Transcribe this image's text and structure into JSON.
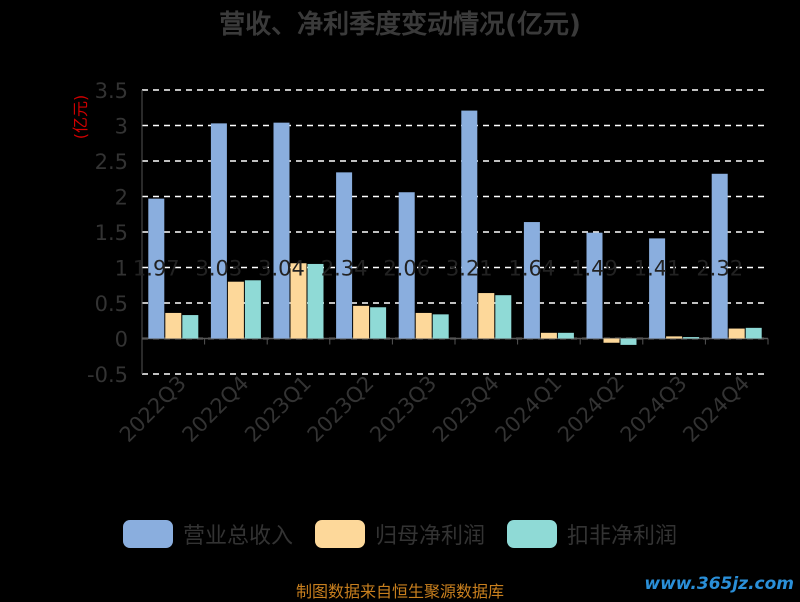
{
  "title": "营收、净利季度变动情况(亿元)",
  "source": "制图数据来自恒生聚源数据库",
  "watermark": "www.365jz.com",
  "colors": {
    "revenue": "#8aaede",
    "net_profit": "#fdd89a",
    "deducted_profit": "#8fdad6",
    "axis": "#555555",
    "tick_text": "#333333",
    "unit": "#d00000"
  },
  "chart_data": {
    "type": "bar",
    "title": "营收、净利季度变动情况(亿元)",
    "ylabel": "(亿元)",
    "xlabel": "",
    "ylim": [
      -0.5,
      3.5
    ],
    "yticks": [
      "3.5",
      "3",
      "2.5",
      "2",
      "1.5",
      "1",
      "0.5",
      "0",
      "-0.5"
    ],
    "grid": true,
    "legend_position": "bottom",
    "categories": [
      "2022Q3",
      "2022Q4",
      "2023Q1",
      "2023Q2",
      "2023Q3",
      "2023Q4",
      "2024Q1",
      "2024Q2",
      "2024Q3",
      "2024Q4"
    ],
    "series": [
      {
        "name": "营业总收入",
        "color": "#8aaede",
        "values": [
          1.97,
          3.03,
          3.04,
          2.34,
          2.06,
          3.21,
          1.64,
          1.49,
          1.41,
          2.32
        ]
      },
      {
        "name": "归母净利润",
        "color": "#fdd89a",
        "values": [
          0.36,
          0.8,
          1.06,
          0.46,
          0.36,
          0.64,
          0.08,
          -0.06,
          0.03,
          0.14
        ]
      },
      {
        "name": "扣非净利润",
        "color": "#8fdad6",
        "values": [
          0.33,
          0.82,
          1.05,
          0.44,
          0.34,
          0.61,
          0.08,
          -0.09,
          0.02,
          0.15
        ]
      }
    ],
    "data_labels": [
      "1.97",
      "3.03",
      "3.04",
      "2.34",
      "2.06",
      "3.21",
      "1.64",
      "1.49",
      "1.41",
      "2.32"
    ]
  }
}
